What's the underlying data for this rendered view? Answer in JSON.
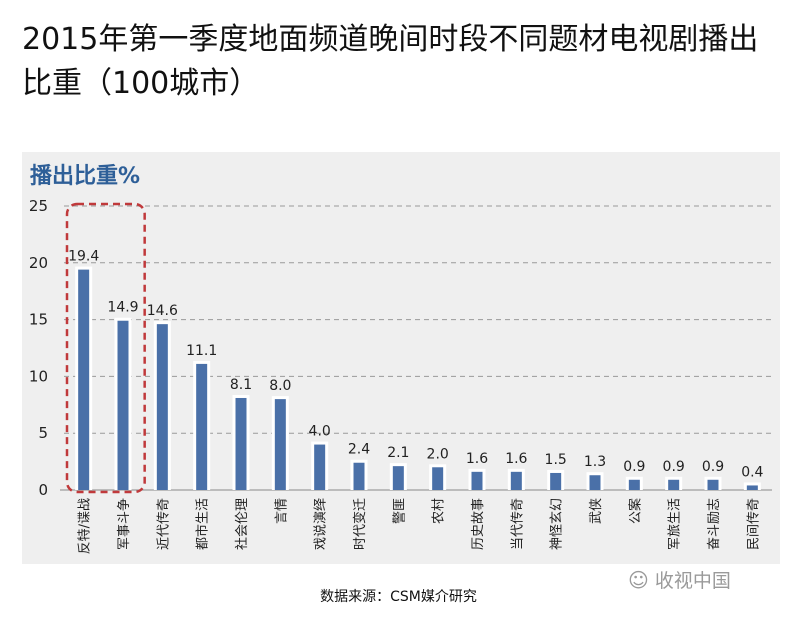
{
  "title": "2015年第一季度地面频道晚间时段不同题材电视剧播出比重（100城市）",
  "source": "数据来源：CSM媒介研究",
  "watermark": "收视中国",
  "chart_data": {
    "type": "bar",
    "ylabel": "播出比重%",
    "ylim": [
      0,
      25
    ],
    "yticks": [
      0,
      5,
      10,
      15,
      20,
      25
    ],
    "grid": true,
    "categories": [
      "反特/谍战",
      "军事斗争",
      "近代传奇",
      "都市生活",
      "社会伦理",
      "言情",
      "戏说演绎",
      "时代变迁",
      "警匪",
      "农村",
      "历史故事",
      "当代传奇",
      "神怪玄幻",
      "武侠",
      "公案",
      "军旅生活",
      "奋斗励志",
      "民间传奇"
    ],
    "values": [
      19.4,
      14.9,
      14.6,
      11.1,
      8.1,
      8.0,
      4.0,
      2.4,
      2.1,
      2.0,
      1.6,
      1.6,
      1.5,
      1.3,
      0.9,
      0.9,
      0.9,
      0.4
    ],
    "value_labels": [
      "19.4",
      "14.9",
      "14.6",
      "11.1",
      "8.1",
      "8.0",
      "4.0",
      "2.4",
      "2.1",
      "2.0",
      "1.6",
      "1.6",
      "1.5",
      "1.3",
      "0.9",
      "0.9",
      "0.9",
      "0.4"
    ],
    "highlight_categories": [
      "反特/谍战",
      "军事斗争"
    ],
    "bar_color": "#4a70a8",
    "highlight_color": "#c0393b"
  }
}
